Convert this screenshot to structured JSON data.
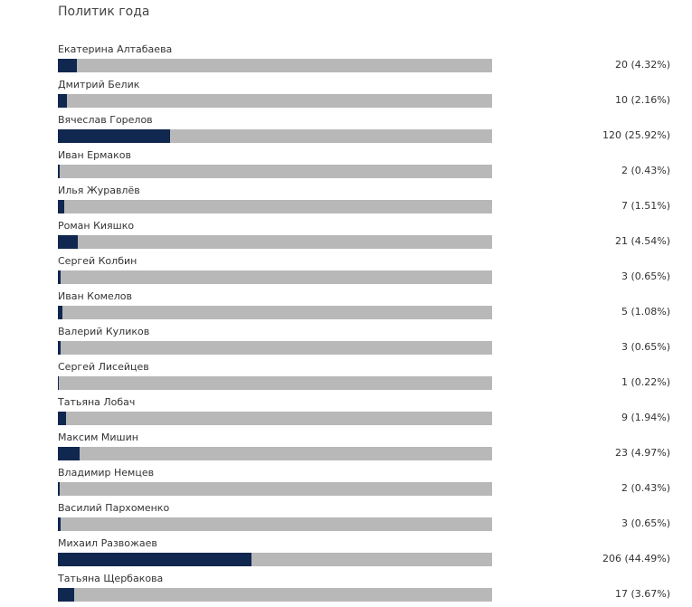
{
  "poll": {
    "title": "Политик года",
    "colors": {
      "bar_fill": "#10274f",
      "bar_track": "#b8b8b8"
    },
    "options": [
      {
        "name": "Екатерина Алтабаева",
        "votes": 20,
        "percent": 4.32,
        "result": "20 (4.32%)"
      },
      {
        "name": "Дмитрий Белик",
        "votes": 10,
        "percent": 2.16,
        "result": "10 (2.16%)"
      },
      {
        "name": "Вячеслав Горелов",
        "votes": 120,
        "percent": 25.92,
        "result": "120 (25.92%)"
      },
      {
        "name": "Иван Ермаков",
        "votes": 2,
        "percent": 0.43,
        "result": "2 (0.43%)"
      },
      {
        "name": "Илья Журавлёв",
        "votes": 7,
        "percent": 1.51,
        "result": "7 (1.51%)"
      },
      {
        "name": "Роман Кияшко",
        "votes": 21,
        "percent": 4.54,
        "result": "21 (4.54%)"
      },
      {
        "name": "Сергей Колбин",
        "votes": 3,
        "percent": 0.65,
        "result": "3 (0.65%)"
      },
      {
        "name": "Иван Комелов",
        "votes": 5,
        "percent": 1.08,
        "result": "5 (1.08%)"
      },
      {
        "name": "Валерий Куликов",
        "votes": 3,
        "percent": 0.65,
        "result": "3 (0.65%)"
      },
      {
        "name": "Сергей Лисейцев",
        "votes": 1,
        "percent": 0.22,
        "result": "1 (0.22%)"
      },
      {
        "name": "Татьяна Лобач",
        "votes": 9,
        "percent": 1.94,
        "result": "9 (1.94%)"
      },
      {
        "name": "Максим Мишин",
        "votes": 23,
        "percent": 4.97,
        "result": "23 (4.97%)"
      },
      {
        "name": "Владимир Немцев",
        "votes": 2,
        "percent": 0.43,
        "result": "2 (0.43%)"
      },
      {
        "name": "Василий Пархоменко",
        "votes": 3,
        "percent": 0.65,
        "result": "3 (0.65%)"
      },
      {
        "name": "Михаил Развожаев",
        "votes": 206,
        "percent": 44.49,
        "result": "206 (44.49%)"
      },
      {
        "name": "Татьяна Щербакова",
        "votes": 17,
        "percent": 3.67,
        "result": "17 (3.67%)"
      }
    ]
  }
}
